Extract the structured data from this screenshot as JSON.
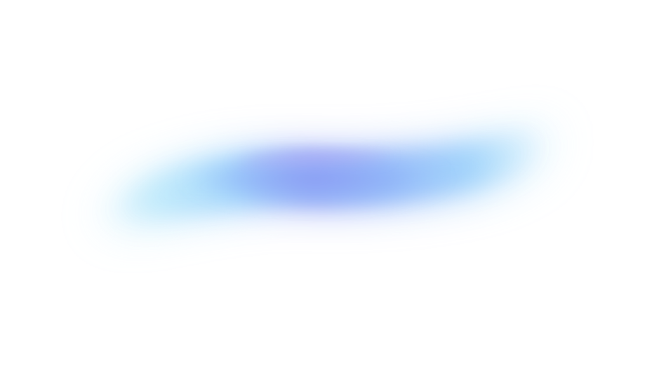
{
  "background": "#ffffff",
  "shape": {
    "icon": "gradient-wave-blob",
    "colors": {
      "edge": "#b9e8fb",
      "light_blue": "#9ed2fb",
      "mid_blue": "#8fb3f8",
      "core_indigo": "#8c9df4",
      "violet_highlight": "#b2a6f4"
    }
  }
}
